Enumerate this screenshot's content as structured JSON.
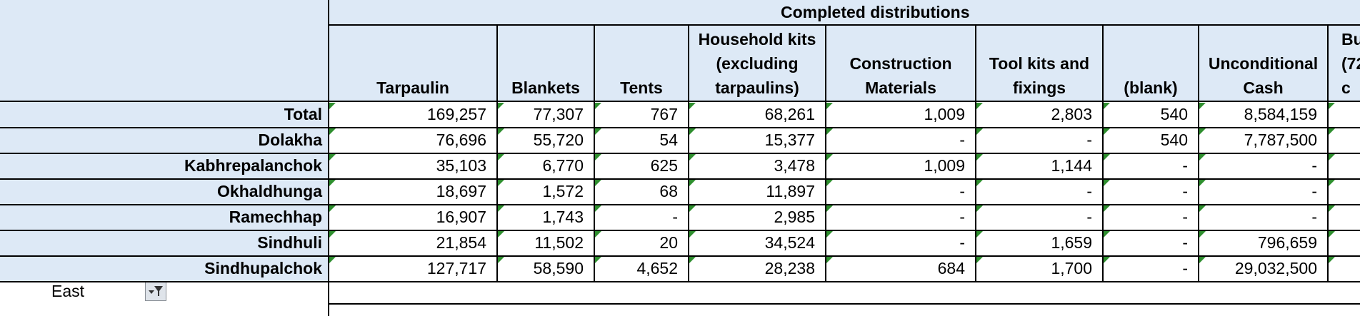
{
  "header": {
    "group_title": "Completed distributions",
    "columns": [
      {
        "lines": [
          "Tarpaulin"
        ]
      },
      {
        "lines": [
          "Blankets"
        ]
      },
      {
        "lines": [
          "Tents"
        ]
      },
      {
        "lines": [
          "Household kits",
          "(excluding",
          "tarpaulins)"
        ]
      },
      {
        "lines": [
          "Construction",
          "Materials"
        ]
      },
      {
        "lines": [
          "Tool kits and",
          "fixings"
        ]
      },
      {
        "lines": [
          "(blank)"
        ]
      },
      {
        "lines": [
          "Unconditional",
          "Cash"
        ]
      },
      {
        "lines": [
          "Bu",
          "(72",
          "c"
        ]
      }
    ]
  },
  "rows": [
    {
      "label": "Total",
      "values": [
        "169,257",
        "77,307",
        "767",
        "68,261",
        "1,009",
        "2,803",
        "540",
        "8,584,159"
      ]
    },
    {
      "label": "Dolakha",
      "values": [
        "76,696",
        "55,720",
        "54",
        "15,377",
        "-",
        "-",
        "540",
        "7,787,500"
      ]
    },
    {
      "label": "Kabhrepalanchok",
      "values": [
        "35,103",
        "6,770",
        "625",
        "3,478",
        "1,009",
        "1,144",
        "-",
        "-"
      ]
    },
    {
      "label": "Okhaldhunga",
      "values": [
        "18,697",
        "1,572",
        "68",
        "11,897",
        "-",
        "-",
        "-",
        "-"
      ]
    },
    {
      "label": "Ramechhap",
      "values": [
        "16,907",
        "1,743",
        "-",
        "2,985",
        "-",
        "-",
        "-",
        "-"
      ]
    },
    {
      "label": "Sindhuli",
      "values": [
        "21,854",
        "11,502",
        "20",
        "34,524",
        "-",
        "1,659",
        "-",
        "796,659"
      ]
    },
    {
      "label": "Sindhupalchok",
      "values": [
        "127,717",
        "58,590",
        "4,652",
        "28,238",
        "684",
        "1,700",
        "-",
        "29,032,500"
      ]
    }
  ],
  "filter": {
    "label": "East",
    "icon": "filter-dropdown-icon"
  },
  "colors": {
    "header_bg": "#dde9f6",
    "error_marker": "#2f8f2f"
  }
}
